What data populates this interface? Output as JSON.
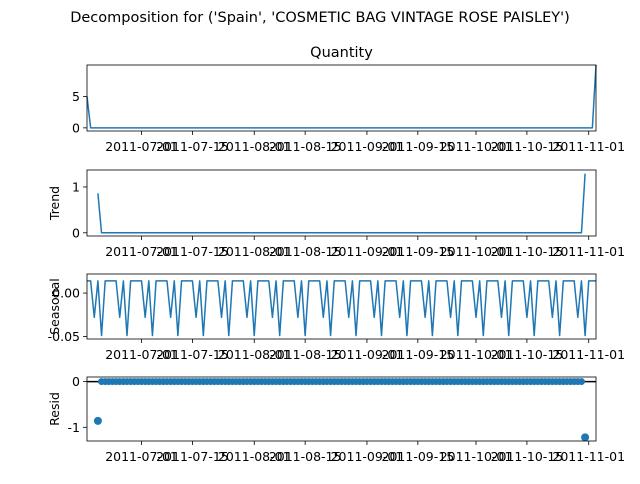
{
  "figure": {
    "suptitle": "Decomposition for ('Spain', 'COSMETIC BAG VINTAGE ROSE PAISLEY')"
  },
  "colors": {
    "series": "#1f77b4",
    "axis": "#000000",
    "background": "#ffffff"
  },
  "chart_data": [
    {
      "type": "line",
      "title": "Quantity",
      "ylabel": "",
      "x_ticks": [
        "2011-07-01",
        "2011-07-15",
        "2011-08-01",
        "2011-08-15",
        "2011-09-01",
        "2011-09-15",
        "2011-10-01",
        "2011-10-15",
        "2011-11-01"
      ],
      "y_ticks": [
        0,
        5
      ],
      "ylim": [
        -0.5,
        10
      ],
      "x_start": "2011-06-16",
      "x_end": "2011-11-03",
      "points": [
        [
          "2011-06-16",
          5
        ],
        [
          "2011-06-17",
          0
        ],
        [
          "2011-11-02",
          0
        ],
        [
          "2011-11-03",
          10
        ]
      ]
    },
    {
      "type": "line",
      "title": "",
      "ylabel": "Trend",
      "x_ticks": [
        "2011-07-01",
        "2011-07-15",
        "2011-08-01",
        "2011-08-15",
        "2011-09-01",
        "2011-09-15",
        "2011-10-01",
        "2011-10-15",
        "2011-11-01"
      ],
      "y_ticks": [
        0,
        1
      ],
      "ylim": [
        -0.07,
        1.37
      ],
      "points": [
        [
          "2011-06-19",
          0.86
        ],
        [
          "2011-06-20",
          0
        ],
        [
          "2011-10-30",
          0
        ],
        [
          "2011-10-31",
          1.29
        ]
      ]
    },
    {
      "type": "line",
      "title": "",
      "ylabel": "Seasonal",
      "x_ticks": [
        "2011-07-01",
        "2011-07-15",
        "2011-08-01",
        "2011-08-15",
        "2011-09-01",
        "2011-09-15",
        "2011-10-01",
        "2011-10-15",
        "2011-11-01"
      ],
      "y_ticks": [
        0.0,
        -0.05
      ],
      "ylim": [
        -0.053,
        0.022
      ],
      "weekly_pattern": [
        0.014,
        0.014,
        -0.028,
        0.014,
        -0.049,
        0.014,
        0.014
      ]
    },
    {
      "type": "scatter",
      "title": "",
      "ylabel": "Resid",
      "x_ticks": [
        "2011-07-01",
        "2011-07-15",
        "2011-08-01",
        "2011-08-15",
        "2011-09-01",
        "2011-09-15",
        "2011-10-01",
        "2011-10-15",
        "2011-11-01"
      ],
      "y_ticks": [
        0,
        -1
      ],
      "ylim": [
        -1.3,
        0.1
      ],
      "zero_line": true,
      "outliers": [
        [
          "2011-06-19",
          -0.86
        ],
        [
          "2011-10-31",
          -1.22
        ]
      ]
    }
  ]
}
